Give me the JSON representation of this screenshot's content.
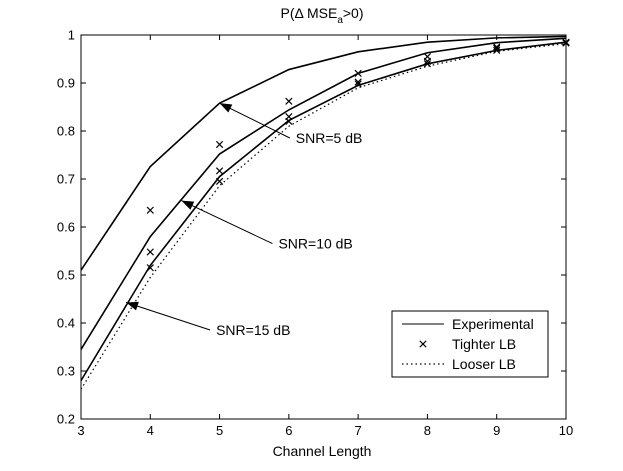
{
  "chart_data": {
    "type": "line",
    "title_main": "P(Δ MSE",
    "title_sub": "a",
    "title_tail": ">0)",
    "xlabel": "Channel Length",
    "ylabel": "",
    "xlim": [
      3,
      10
    ],
    "ylim": [
      0.2,
      1
    ],
    "xticks": [
      "3",
      "4",
      "5",
      "6",
      "7",
      "8",
      "9",
      "10"
    ],
    "yticks": [
      "0.2",
      "0.3",
      "0.4",
      "0.5",
      "0.6",
      "0.7",
      "0.8",
      "0.9",
      "1"
    ],
    "grid": false,
    "legend_position": "bottom-right",
    "legend": {
      "experimental": "Experimental",
      "tighter": "Tighter LB",
      "looser": "Looser LB"
    },
    "x": [
      3,
      4,
      5,
      6,
      7,
      8,
      9,
      10
    ],
    "groups": [
      {
        "snr": "SNR=5 dB",
        "experimental": [
          0.51,
          0.726,
          0.858,
          0.928,
          0.965,
          0.985,
          0.994,
          0.997
        ],
        "tighter": [
          null,
          0.635,
          0.772,
          0.862,
          0.92,
          0.955,
          0.975,
          0.985
        ],
        "annotation": {
          "text": "SNR=5 dB",
          "text_xy": [
            6.1,
            0.775
          ],
          "arrow_to": [
            5.0,
            0.858
          ]
        }
      },
      {
        "snr": "SNR=10 dB",
        "experimental": [
          0.345,
          0.58,
          0.752,
          0.844,
          0.92,
          0.963,
          0.984,
          0.993
        ],
        "tighter": [
          null,
          0.548,
          0.717,
          0.83,
          0.902,
          0.945,
          0.972,
          0.983
        ],
        "annotation": {
          "text": "SNR=10 dB",
          "text_xy": [
            5.85,
            0.555
          ],
          "arrow_to": [
            4.45,
            0.655
          ]
        }
      },
      {
        "snr": "SNR=15 dB",
        "experimental": [
          0.28,
          0.52,
          0.705,
          0.822,
          0.895,
          0.94,
          0.968,
          0.985
        ],
        "tighter": [
          null,
          0.515,
          0.695,
          0.82,
          0.898,
          0.94,
          0.968,
          0.984
        ],
        "looser": [
          0.262,
          0.495,
          0.686,
          0.81,
          0.89,
          0.935,
          0.966,
          0.982
        ],
        "annotation": {
          "text": "SNR=15 dB",
          "text_xy": [
            4.95,
            0.375
          ],
          "arrow_to": [
            3.65,
            0.443
          ]
        }
      }
    ]
  }
}
